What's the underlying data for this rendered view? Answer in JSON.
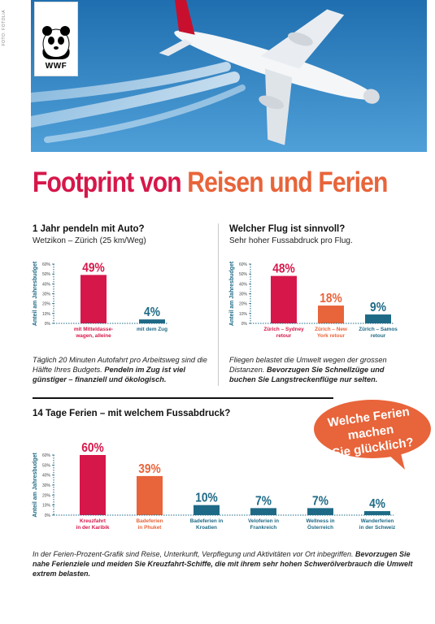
{
  "side_credit": "FOTO: FOTOLIA",
  "logo": {
    "text": "WWF"
  },
  "title": {
    "part1": "Footprint von ",
    "part2": "Reisen und Ferien"
  },
  "panel_left": {
    "heading": "1 Jahr pendeln mit Auto?",
    "subheading": "Wetzikon – Zürich (25 km/Weg)",
    "note_plain": "Täglich 20 Minuten Autofahrt pro Arbeitsweg sind die Hälfte Ihres Budgets. ",
    "note_bold": "Pendeln im Zug ist viel günstiger – finanziell und ökologisch."
  },
  "panel_right": {
    "heading": "Welcher Flug ist sinnvoll?",
    "subheading": "Sehr hoher Fussabdruck pro Flug.",
    "note_plain": "Fliegen belastet die Umwelt wegen der grossen Distanzen. ",
    "note_bold": "Bevorzugen Sie Schnellzüge und buchen Sie Langstreckenflüge nur selten."
  },
  "panel_bottom": {
    "heading": "14 Tage Ferien – mit welchem Fussabdruck?"
  },
  "bubble": {
    "line1": "Welche Ferien machen",
    "line2": "Sie glücklich?"
  },
  "footer": {
    "plain": "In der Ferien-Prozent-Grafik sind Reise, Unterkunft, Verpflegung und Aktivitäten vor Ort inbegriffen. ",
    "bold": "Bevorzugen Sie nahe Ferienziele und meiden Sie Kreuzfahrt-Schiffe, die mit ihrem sehr hohen Schwerölverbrauch die Umwelt extrem belasten."
  },
  "colors": {
    "crimson": "#d6174a",
    "orange": "#e8643a",
    "teal": "#1e6a86",
    "sky": "#2f86c4"
  },
  "chart_data": [
    {
      "type": "bar",
      "ylabel": "Anteil am Jahresbudget",
      "ylim": [
        0,
        60
      ],
      "yticks": [
        "60%",
        "50%",
        "40%",
        "30%",
        "20%",
        "10%",
        "0%"
      ],
      "categories": [
        [
          "mit Mitteldasse-",
          "wagen, alleine"
        ],
        [
          "mit dem Zug"
        ]
      ],
      "values": [
        49,
        4
      ],
      "value_labels": [
        "49%",
        "4%"
      ],
      "bar_colors": [
        "#d6174a",
        "#1e6a86"
      ]
    },
    {
      "type": "bar",
      "ylabel": "Anteil am Jahresbudget",
      "ylim": [
        0,
        60
      ],
      "yticks": [
        "60%",
        "50%",
        "40%",
        "30%",
        "20%",
        "10%",
        "0%"
      ],
      "categories": [
        [
          "Zürich – Sydney",
          "retour"
        ],
        [
          "Zürich – New",
          "York retour"
        ],
        [
          "Zürich – Samos",
          "retour"
        ]
      ],
      "values": [
        48,
        18,
        9
      ],
      "value_labels": [
        "48%",
        "18%",
        "9%"
      ],
      "bar_colors": [
        "#d6174a",
        "#e8643a",
        "#1e6a86"
      ]
    },
    {
      "type": "bar",
      "ylabel": "Anteil am Jahresbudget",
      "ylim": [
        0,
        60
      ],
      "yticks": [
        "60%",
        "50%",
        "40%",
        "30%",
        "20%",
        "10%",
        "0%"
      ],
      "categories": [
        [
          "Kreuzfahrt",
          "in der Karibik"
        ],
        [
          "Badeferien",
          "in Phuket"
        ],
        [
          "Badeferien in",
          "Kroatien"
        ],
        [
          "Veloferien in",
          "Frankreich"
        ],
        [
          "Wellness in",
          "Österreich"
        ],
        [
          "Wanderferien",
          "in der Schweiz"
        ]
      ],
      "values": [
        60,
        39,
        10,
        7,
        7,
        4
      ],
      "value_labels": [
        "60%",
        "39%",
        "10%",
        "7%",
        "7%",
        "4%"
      ],
      "bar_colors": [
        "#d6174a",
        "#e8643a",
        "#1e6a86",
        "#1e6a86",
        "#1e6a86",
        "#1e6a86"
      ]
    }
  ]
}
